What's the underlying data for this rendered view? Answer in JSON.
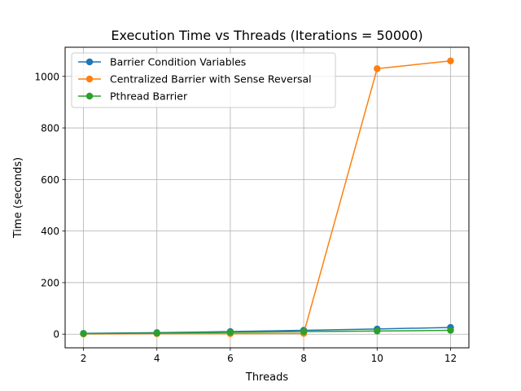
{
  "chart_data": {
    "type": "line",
    "title": "Execution Time vs Threads (Iterations = 50000)",
    "xlabel": "Threads",
    "ylabel": "Time (seconds)",
    "x": [
      2,
      4,
      6,
      8,
      10,
      12
    ],
    "xlim": [
      1.5,
      12.5
    ],
    "ylim": [
      -53,
      1113
    ],
    "xticks": [
      2,
      4,
      6,
      8,
      10,
      12
    ],
    "yticks": [
      0,
      200,
      400,
      600,
      800,
      1000
    ],
    "grid": true,
    "legend_position": "top-left",
    "series": [
      {
        "name": "Barrier Condition Variables",
        "color": "#1f77b4",
        "values": [
          3,
          6,
          10,
          15,
          20,
          26
        ]
      },
      {
        "name": "Centralized Barrier with Sense Reversal",
        "color": "#ff7f0e",
        "values": [
          1,
          2,
          2,
          3,
          1030,
          1060
        ]
      },
      {
        "name": "Pthread Barrier",
        "color": "#2ca02c",
        "values": [
          2,
          4,
          7,
          10,
          12,
          15
        ]
      }
    ]
  }
}
